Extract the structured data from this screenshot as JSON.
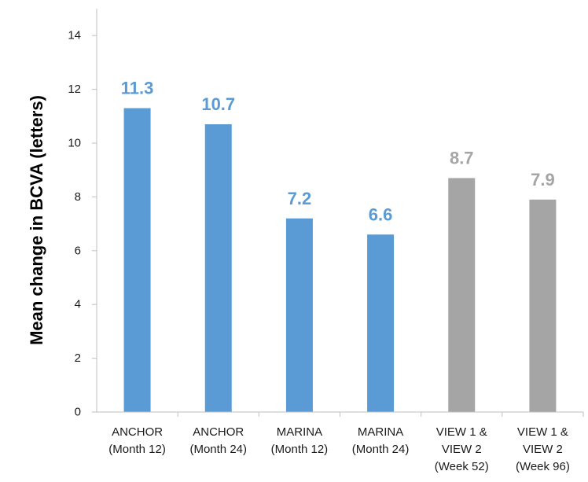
{
  "chart_data": {
    "type": "bar",
    "title": "",
    "xlabel": "",
    "ylabel": "Mean change in BCVA (letters)",
    "ylim": [
      0,
      14
    ],
    "yticks": [
      0,
      2,
      4,
      6,
      8,
      10,
      12,
      14
    ],
    "grid": false,
    "categories": [
      [
        "ANCHOR",
        "(Month 12)"
      ],
      [
        "ANCHOR",
        "(Month 24)"
      ],
      [
        "MARINA",
        "(Month 12)"
      ],
      [
        "MARINA",
        "(Month 24)"
      ],
      [
        "VIEW 1 &",
        "VIEW 2",
        "(Week 52)"
      ],
      [
        "VIEW 1 &",
        "VIEW 2",
        "(Week 96)"
      ]
    ],
    "values": [
      11.3,
      10.7,
      7.2,
      6.6,
      8.7,
      7.9
    ],
    "data_labels": [
      "11.3",
      "10.7",
      "7.2",
      "6.6",
      "8.7",
      "7.9"
    ],
    "bar_colors": [
      "#5b9bd5",
      "#5b9bd5",
      "#5b9bd5",
      "#5b9bd5",
      "#a5a5a5",
      "#a5a5a5"
    ]
  }
}
